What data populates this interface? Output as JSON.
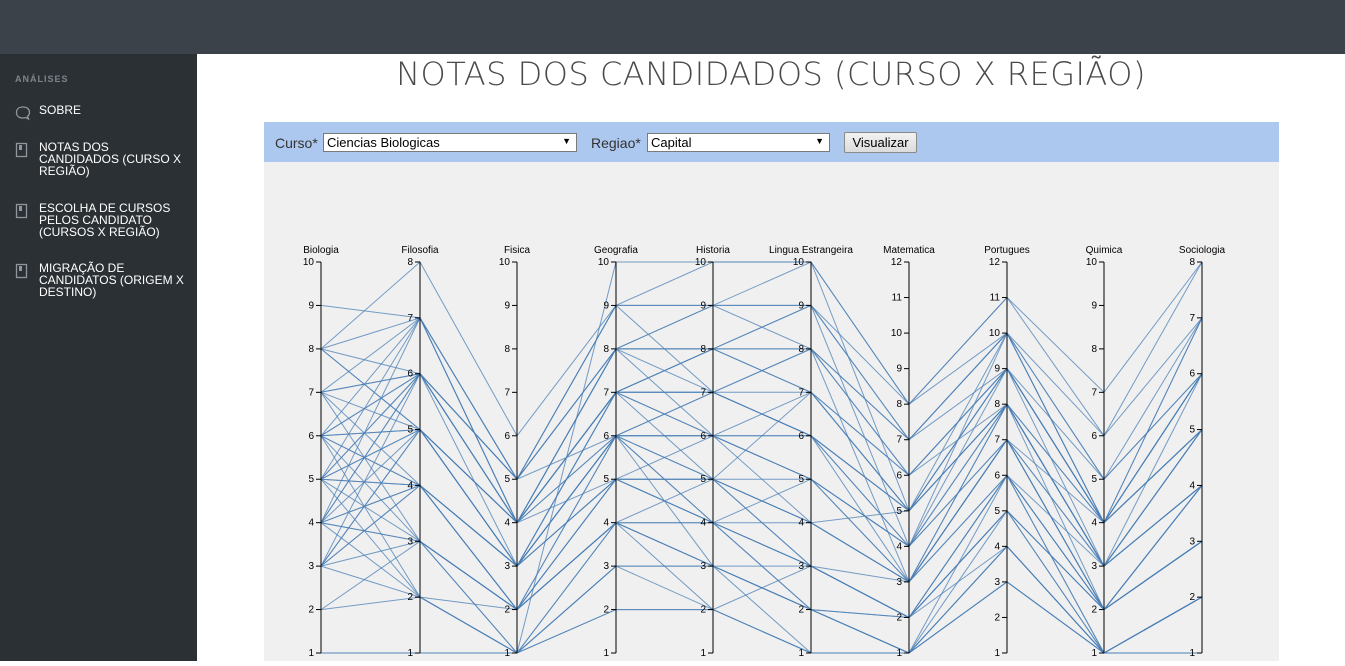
{
  "sidebar": {
    "heading": "ANÁLISES",
    "items": [
      {
        "label": "SOBRE",
        "icon": "chat-bubble-icon"
      },
      {
        "label": "NOTAS DOS CANDIDADOS (CURSO X REGIÃO)",
        "icon": "bookmark-icon"
      },
      {
        "label": "ESCOLHA DE CURSOS PELOS CANDIDATO (CURSOS X REGIÃO)",
        "icon": "bookmark-icon"
      },
      {
        "label": "MIGRAÇÃO DE CANDIDATOS (ORIGEM X DESTINO)",
        "icon": "bookmark-icon"
      }
    ]
  },
  "page": {
    "title": "NOTAS DOS CANDIDADOS (CURSO X REGIÃO)"
  },
  "filters": {
    "curso_label": "Curso*",
    "curso_value": "Ciencias Biologicas",
    "regiao_label": "Regiao*",
    "regiao_value": "Capital",
    "button_label": "Visualizar"
  },
  "colors": {
    "topbar": "#3c424a",
    "sidebar": "#2b3034",
    "filterbar": "#adc8ef",
    "chart_bg": "#f0f0f0",
    "line": "#4a7fb5"
  },
  "chart_data": {
    "type": "parallel-coordinates",
    "title": "",
    "axes": [
      {
        "name": "Biologia",
        "min": 1,
        "max": 10,
        "ticks": [
          1,
          2,
          3,
          4,
          5,
          6,
          7,
          8,
          9,
          10
        ]
      },
      {
        "name": "Filosofia",
        "min": 1,
        "max": 8,
        "ticks": [
          1,
          2,
          3,
          4,
          5,
          6,
          7,
          8
        ]
      },
      {
        "name": "Fisica",
        "min": 1,
        "max": 10,
        "ticks": [
          1,
          2,
          3,
          4,
          5,
          6,
          7,
          8,
          9,
          10
        ]
      },
      {
        "name": "Geografia",
        "min": 1,
        "max": 10,
        "ticks": [
          1,
          2,
          3,
          4,
          5,
          6,
          7,
          8,
          9,
          10
        ]
      },
      {
        "name": "Historia",
        "min": 1,
        "max": 10,
        "ticks": [
          1,
          2,
          3,
          4,
          5,
          6,
          7,
          8,
          9,
          10
        ]
      },
      {
        "name": "Lingua Estrangeira",
        "min": 1,
        "max": 10,
        "ticks": [
          1,
          2,
          3,
          4,
          5,
          6,
          7,
          8,
          9,
          10
        ]
      },
      {
        "name": "Matematica",
        "min": 1,
        "max": 12,
        "ticks": [
          1,
          2,
          3,
          4,
          5,
          6,
          7,
          8,
          9,
          10,
          11,
          12
        ]
      },
      {
        "name": "Portugues",
        "min": 1,
        "max": 12,
        "ticks": [
          1,
          2,
          3,
          4,
          5,
          6,
          7,
          8,
          9,
          10,
          11,
          12
        ]
      },
      {
        "name": "Quimica",
        "min": 1,
        "max": 10,
        "ticks": [
          1,
          2,
          3,
          4,
          5,
          6,
          7,
          8,
          9,
          10
        ]
      },
      {
        "name": "Sociologia",
        "min": 1,
        "max": 8,
        "ticks": [
          1,
          2,
          3,
          4,
          5,
          6,
          7,
          8
        ]
      }
    ],
    "records": [
      [
        1,
        1,
        1,
        10,
        10,
        10,
        8,
        11,
        7,
        8
      ],
      [
        9,
        7,
        5,
        9,
        9,
        9,
        8,
        10,
        6,
        7
      ],
      [
        8,
        7,
        4,
        8,
        8,
        8,
        7,
        10,
        5,
        6
      ],
      [
        8,
        6,
        4,
        8,
        7,
        7,
        6,
        9,
        4,
        6
      ],
      [
        8,
        5,
        3,
        7,
        6,
        7,
        5,
        9,
        4,
        5
      ],
      [
        7,
        6,
        4,
        7,
        7,
        6,
        5,
        8,
        3,
        5
      ],
      [
        7,
        5,
        3,
        6,
        5,
        5,
        4,
        7,
        2,
        4
      ],
      [
        7,
        4,
        2,
        6,
        4,
        5,
        3,
        7,
        2,
        4
      ],
      [
        6,
        7,
        5,
        6,
        6,
        4,
        5,
        8,
        4,
        6
      ],
      [
        6,
        6,
        4,
        5,
        5,
        3,
        3,
        7,
        3,
        5
      ],
      [
        6,
        5,
        3,
        5,
        4,
        2,
        2,
        6,
        2,
        3
      ],
      [
        6,
        4,
        2,
        4,
        3,
        1,
        1,
        6,
        1,
        2
      ],
      [
        6,
        3,
        1,
        4,
        2,
        3,
        2,
        5,
        1,
        1
      ],
      [
        5,
        6,
        4,
        7,
        8,
        9,
        7,
        10,
        4,
        7
      ],
      [
        5,
        5,
        3,
        6,
        6,
        6,
        4,
        8,
        3,
        5
      ],
      [
        5,
        4,
        2,
        5,
        5,
        4,
        3,
        6,
        2,
        3
      ],
      [
        5,
        3,
        1,
        3,
        3,
        2,
        1,
        4,
        1,
        2
      ],
      [
        5,
        2,
        2,
        4,
        4,
        3,
        2,
        5,
        2,
        3
      ],
      [
        4,
        6,
        5,
        8,
        9,
        8,
        6,
        9,
        4,
        6
      ],
      [
        4,
        5,
        4,
        7,
        7,
        6,
        5,
        8,
        3,
        4
      ],
      [
        4,
        4,
        3,
        5,
        5,
        4,
        3,
        7,
        2,
        4
      ],
      [
        4,
        3,
        2,
        4,
        3,
        2,
        1,
        5,
        1,
        2
      ],
      [
        4,
        2,
        1,
        3,
        2,
        1,
        1,
        3,
        1,
        1
      ],
      [
        3,
        5,
        4,
        6,
        6,
        5,
        4,
        8,
        3,
        5
      ],
      [
        3,
        4,
        3,
        5,
        4,
        3,
        2,
        6,
        2,
        3
      ],
      [
        3,
        3,
        2,
        4,
        3,
        2,
        1,
        4,
        1,
        2
      ],
      [
        3,
        2,
        1,
        2,
        2,
        1,
        1,
        3,
        1,
        1
      ],
      [
        3,
        6,
        4,
        7,
        8,
        7,
        5,
        9,
        4,
        6
      ],
      [
        2,
        3,
        2,
        4,
        4,
        3,
        2,
        5,
        2,
        3
      ],
      [
        2,
        2,
        1,
        3,
        3,
        2,
        1,
        4,
        1,
        2
      ],
      [
        1,
        1,
        1,
        2,
        2,
        1,
        1,
        3,
        1,
        1
      ],
      [
        8,
        8,
        6,
        9,
        10,
        10,
        8,
        11,
        6,
        8
      ],
      [
        7,
        7,
        5,
        8,
        9,
        9,
        7,
        10,
        5,
        7
      ],
      [
        6,
        4,
        3,
        6,
        7,
        8,
        6,
        9,
        4,
        5
      ],
      [
        5,
        5,
        4,
        8,
        8,
        7,
        5,
        8,
        3,
        4
      ],
      [
        4,
        4,
        3,
        7,
        6,
        5,
        4,
        7,
        4,
        5
      ],
      [
        6,
        6,
        5,
        9,
        7,
        6,
        4,
        9,
        5,
        6
      ],
      [
        7,
        3,
        2,
        5,
        4,
        4,
        3,
        6,
        3,
        4
      ],
      [
        5,
        7,
        4,
        7,
        5,
        3,
        2,
        5,
        2,
        3
      ],
      [
        4,
        6,
        3,
        6,
        4,
        2,
        2,
        6,
        1,
        2
      ],
      [
        3,
        4,
        2,
        5,
        6,
        5,
        3,
        7,
        3,
        4
      ],
      [
        6,
        2,
        1,
        4,
        5,
        4,
        3,
        8,
        2,
        3
      ],
      [
        8,
        5,
        4,
        6,
        3,
        3,
        2,
        4,
        1,
        2
      ],
      [
        7,
        6,
        5,
        8,
        6,
        6,
        5,
        10,
        4,
        6
      ],
      [
        5,
        4,
        3,
        7,
        7,
        8,
        7,
        9,
        4,
        5
      ],
      [
        4,
        3,
        2,
        6,
        5,
        7,
        6,
        8,
        3,
        4
      ],
      [
        6,
        5,
        4,
        8,
        8,
        9,
        4,
        10,
        4,
        5
      ],
      [
        3,
        5,
        3,
        6,
        7,
        6,
        3,
        7,
        2,
        4
      ],
      [
        5,
        6,
        5,
        9,
        9,
        10,
        5,
        9,
        3,
        6
      ],
      [
        4,
        7,
        4,
        7,
        8,
        8,
        3,
        8,
        4,
        7
      ]
    ]
  }
}
